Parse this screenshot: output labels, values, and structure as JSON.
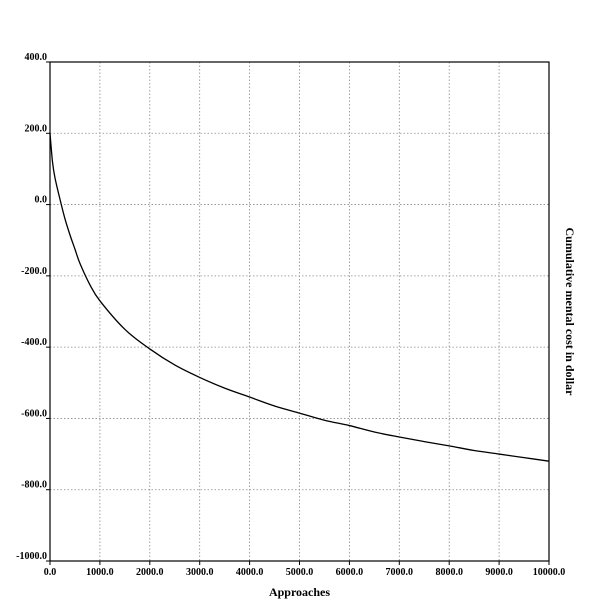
{
  "chart_data": {
    "type": "line",
    "title": "",
    "xlabel": "Approaches",
    "ylabel": "Cumulative mental cost in dollar",
    "xlim": [
      0,
      10000
    ],
    "ylim": [
      -1000,
      400
    ],
    "x_ticks": [
      "0.0",
      "1000.0",
      "2000.0",
      "3000.0",
      "4000.0",
      "5000.0",
      "6000.0",
      "7000.0",
      "8000.0",
      "9000.0",
      "10000.0"
    ],
    "y_ticks": [
      "400.0",
      "200.0",
      "0.0",
      "-200.0",
      "-400.0",
      "-600.0",
      "-800.0",
      "-1000.0"
    ],
    "grid": true,
    "series": [
      {
        "x": [
          0,
          50,
          100,
          200,
          300,
          400,
          500,
          600,
          800,
          1000,
          1500,
          2000,
          2500,
          3000,
          3500,
          4000,
          4500,
          5000,
          5500,
          6000,
          6500,
          7000,
          7500,
          8000,
          8500,
          9000,
          9500,
          10000
        ],
        "y": [
          200,
          120,
          75,
          15,
          -40,
          -85,
          -125,
          -165,
          -225,
          -270,
          -350,
          -405,
          -450,
          -485,
          -515,
          -540,
          -565,
          -585,
          -605,
          -620,
          -638,
          -652,
          -665,
          -677,
          -690,
          -700,
          -710,
          -720
        ]
      }
    ]
  }
}
